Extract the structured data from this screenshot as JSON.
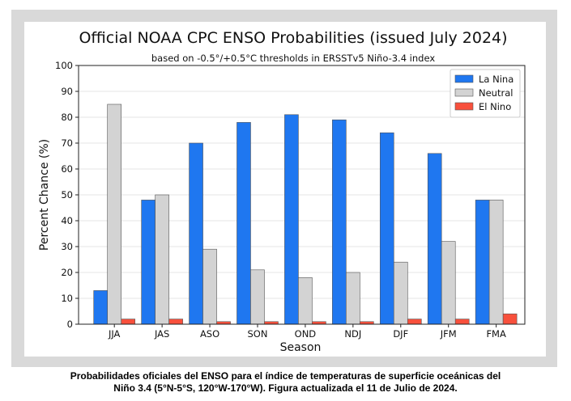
{
  "chart_data": {
    "type": "bar",
    "title": "Official NOAA CPC ENSO Probabilities (issued July 2024)",
    "subtitle": "based on -0.5°/+0.5°C thresholds in ERSSTv5 Niño-3.4 index",
    "xlabel": "Season",
    "ylabel": "Percent Chance (%)",
    "ylim": [
      0,
      100
    ],
    "yticks": [
      0,
      10,
      20,
      30,
      40,
      50,
      60,
      70,
      80,
      90,
      100
    ],
    "grid": true,
    "legend_position": "top-right",
    "categories": [
      "JJA",
      "JAS",
      "ASO",
      "SON",
      "OND",
      "NDJ",
      "DJF",
      "JFM",
      "FMA"
    ],
    "series": [
      {
        "name": "La Nina",
        "color": "#1f77f0",
        "values": [
          13,
          48,
          70,
          78,
          81,
          79,
          74,
          66,
          48
        ]
      },
      {
        "name": "Neutral",
        "color": "#d3d3d3",
        "values": [
          85,
          50,
          29,
          21,
          18,
          20,
          24,
          32,
          48
        ]
      },
      {
        "name": "El Nino",
        "color": "#f8503c",
        "values": [
          2,
          2,
          1,
          1,
          1,
          1,
          2,
          2,
          4
        ]
      }
    ]
  },
  "caption": {
    "line1": "Probabilidades oficiales del ENSO para el índice de temperaturas de superficie oceánicas del",
    "line2": "Niño 3.4 (5°N-5°S, 120°W-170°W). Figura actualizada el 11 de Julio de 2024."
  }
}
